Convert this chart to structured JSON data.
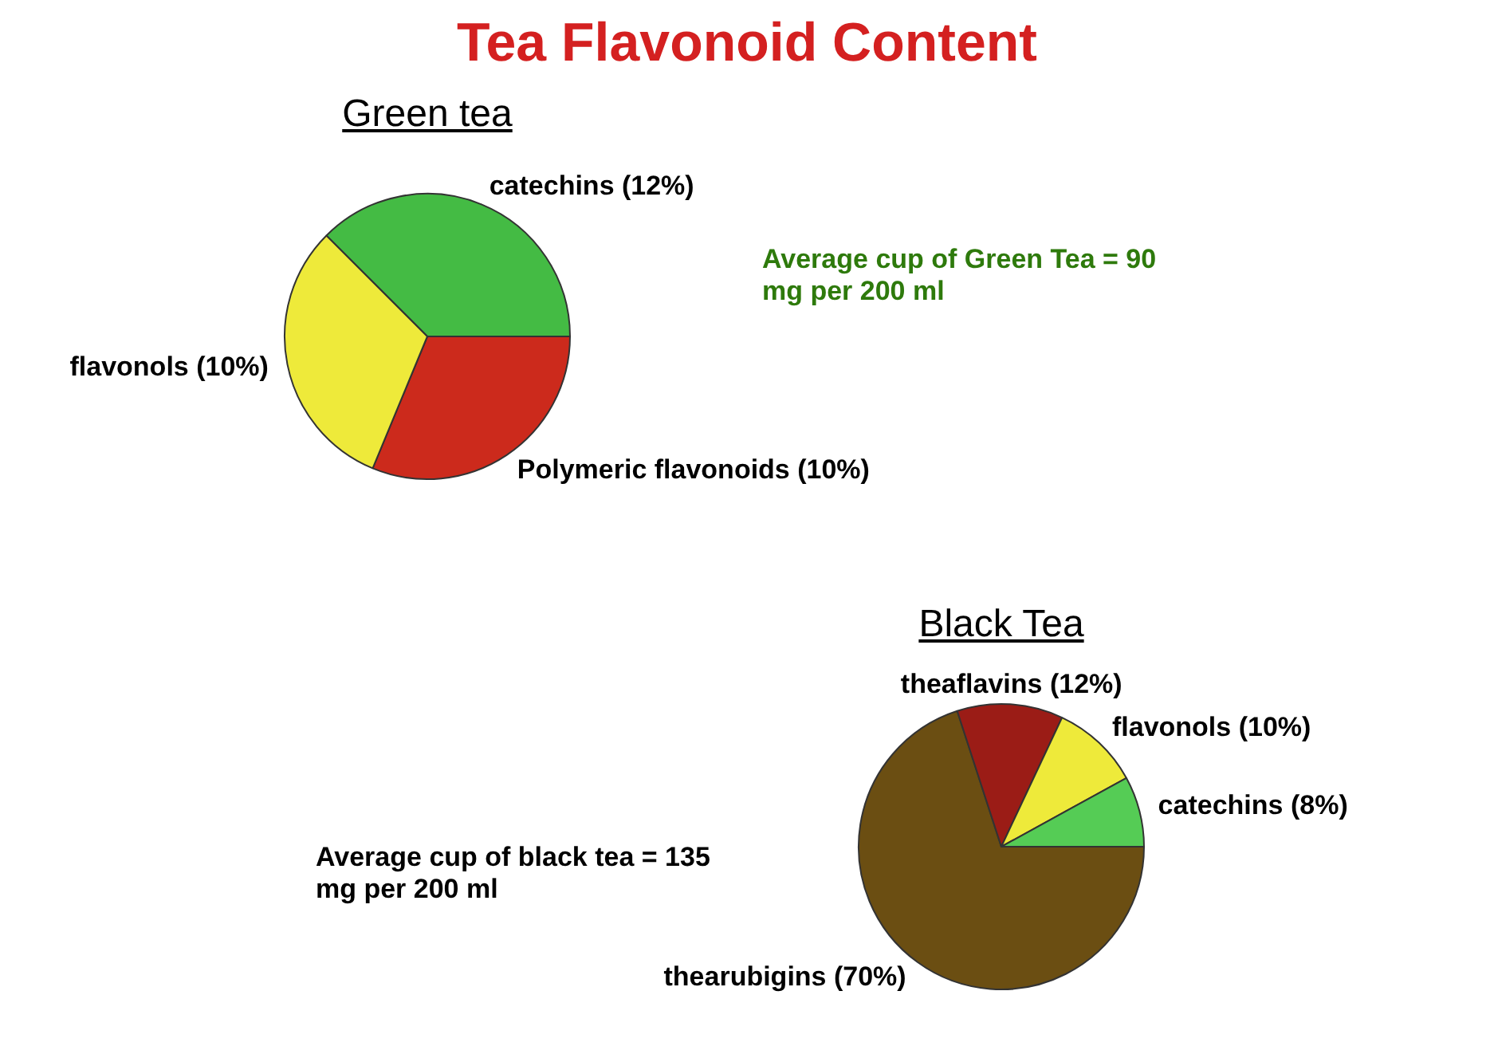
{
  "chart_data": [
    {
      "type": "pie",
      "title": "Tea Flavonoid Content",
      "subtitle": "Green tea",
      "categories": [
        "catechins (12%)",
        "Polymeric flavonoids (10%)",
        "flavonols (10%)"
      ],
      "values": [
        12,
        10,
        10
      ],
      "colors": [
        "#44bb44",
        "#cc2a1c",
        "#eeea3a"
      ],
      "legend": false,
      "annotations": [
        "Average cup of Green Tea = 90 mg per 200 ml"
      ]
    },
    {
      "type": "pie",
      "subtitle": "Black Tea",
      "categories": [
        "thearubigins (70%)",
        "theaflavins (12%)",
        "flavonols (10%)",
        "catechins (8%)"
      ],
      "values": [
        70,
        12,
        10,
        8
      ],
      "colors": [
        "#6b4e12",
        "#9b1c16",
        "#eeea3a",
        "#55cc55"
      ],
      "legend": false,
      "annotations": [
        "Average cup of black tea = 135 mg per 200 ml"
      ]
    }
  ]
}
